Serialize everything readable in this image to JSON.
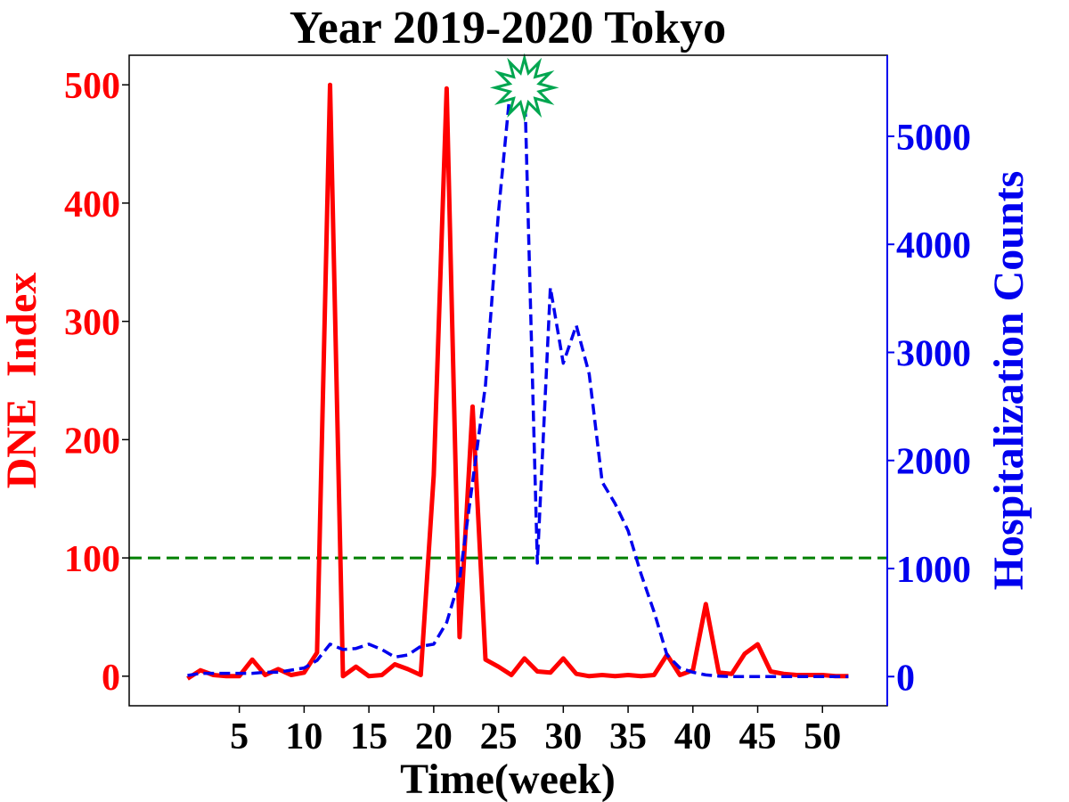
{
  "chart_data": {
    "type": "line",
    "title": "Year 2019-2020 Tokyo",
    "xlabel": "Time(week)",
    "ylabel_left": "DNE  Index",
    "ylabel_right": "Hospitalization Counts",
    "xlim": [
      -3.5,
      55
    ],
    "ylim_left": [
      -25,
      525
    ],
    "ylim_right": [
      -270,
      5750
    ],
    "x_ticks": [
      5,
      10,
      15,
      20,
      25,
      30,
      35,
      40,
      45,
      50
    ],
    "y_ticks_left": [
      0,
      100,
      200,
      300,
      400,
      500
    ],
    "y_ticks_right": [
      0,
      1000,
      2000,
      3000,
      4000,
      5000
    ],
    "threshold": 100,
    "colors": {
      "dne": "#ff0000",
      "hosp": "#0000ee",
      "threshold": "#008000",
      "marker_fill": "#ffffff",
      "marker_edge": "#00a650"
    },
    "series": [
      {
        "name": "DNE Index",
        "axis": "left",
        "style": "solid",
        "x": [
          1,
          2,
          3,
          4,
          5,
          6,
          7,
          8,
          9,
          10,
          11,
          12,
          13,
          14,
          15,
          16,
          17,
          18,
          19,
          20,
          21,
          22,
          23,
          24,
          25,
          26,
          27,
          28,
          29,
          30,
          31,
          32,
          33,
          34,
          35,
          36,
          37,
          38,
          39,
          40,
          41,
          42,
          43,
          44,
          45,
          46,
          47,
          48,
          49,
          50,
          51,
          52
        ],
        "values": [
          -2,
          5,
          1,
          0,
          0,
          14,
          1,
          6,
          1,
          3,
          20,
          500,
          0,
          8,
          0,
          1,
          10,
          6,
          1,
          170,
          497,
          33,
          228,
          14,
          8,
          1,
          15,
          4,
          3,
          15,
          2,
          0,
          1,
          0,
          1,
          0,
          1,
          18,
          1,
          5,
          61,
          3,
          2,
          19,
          27,
          4,
          2,
          1,
          1,
          1,
          0,
          0
        ]
      },
      {
        "name": "Hospitalization Counts",
        "axis": "right",
        "style": "dashed",
        "x": [
          1,
          2,
          3,
          4,
          5,
          6,
          7,
          8,
          9,
          10,
          11,
          12,
          13,
          14,
          15,
          16,
          17,
          18,
          19,
          20,
          21,
          22,
          23,
          24,
          25,
          26,
          27,
          28,
          29,
          30,
          31,
          32,
          33,
          34,
          35,
          36,
          37,
          38,
          39,
          40,
          41,
          42,
          43,
          44,
          45,
          46,
          47,
          48,
          49,
          50,
          51,
          52
        ],
        "values": [
          10,
          30,
          30,
          30,
          30,
          30,
          40,
          40,
          60,
          80,
          150,
          300,
          250,
          260,
          300,
          250,
          180,
          200,
          280,
          300,
          500,
          900,
          1800,
          2700,
          4300,
          5550,
          5550,
          1050,
          3600,
          2900,
          3250,
          2800,
          1800,
          1600,
          1350,
          950,
          600,
          200,
          80,
          40,
          15,
          5,
          0,
          0,
          0,
          0,
          0,
          0,
          0,
          0,
          0,
          0
        ]
      }
    ],
    "annotations": [
      {
        "type": "star-marker",
        "x": 27,
        "y": 5450,
        "axis": "right"
      }
    ]
  }
}
